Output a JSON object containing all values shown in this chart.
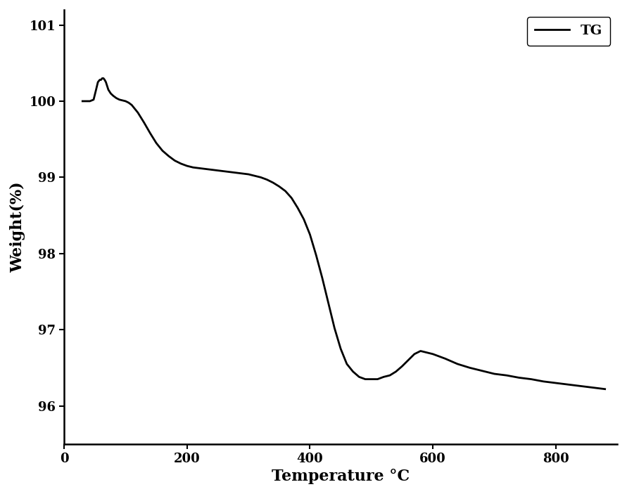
{
  "title": "",
  "xlabel": "Temperature °C",
  "ylabel": "Weight(%)",
  "xlim": [
    0,
    900
  ],
  "ylim": [
    95.5,
    101.2
  ],
  "yticks": [
    96,
    97,
    98,
    99,
    100,
    101
  ],
  "xticks": [
    0,
    200,
    400,
    600,
    800
  ],
  "line_color": "#000000",
  "line_width": 2.0,
  "legend_label": "TG",
  "background_color": "#ffffff",
  "x_data": [
    30,
    42,
    48,
    52,
    55,
    58,
    60,
    62,
    64,
    66,
    68,
    70,
    72,
    76,
    80,
    85,
    90,
    95,
    100,
    105,
    110,
    120,
    130,
    140,
    150,
    160,
    170,
    180,
    190,
    200,
    210,
    220,
    230,
    240,
    250,
    260,
    270,
    280,
    290,
    300,
    310,
    320,
    330,
    340,
    350,
    360,
    370,
    380,
    390,
    400,
    410,
    420,
    430,
    440,
    450,
    460,
    470,
    480,
    490,
    500,
    510,
    520,
    530,
    540,
    550,
    560,
    570,
    580,
    590,
    600,
    620,
    640,
    660,
    680,
    700,
    720,
    740,
    760,
    780,
    800,
    820,
    840,
    860,
    880
  ],
  "y_data": [
    100.0,
    100.0,
    100.02,
    100.15,
    100.25,
    100.28,
    100.28,
    100.3,
    100.3,
    100.28,
    100.25,
    100.2,
    100.15,
    100.1,
    100.07,
    100.04,
    100.02,
    100.01,
    100.0,
    99.98,
    99.95,
    99.85,
    99.72,
    99.58,
    99.45,
    99.35,
    99.28,
    99.22,
    99.18,
    99.15,
    99.13,
    99.12,
    99.11,
    99.1,
    99.09,
    99.08,
    99.07,
    99.06,
    99.05,
    99.04,
    99.02,
    99.0,
    98.97,
    98.93,
    98.88,
    98.82,
    98.73,
    98.6,
    98.45,
    98.25,
    97.98,
    97.68,
    97.35,
    97.02,
    96.75,
    96.55,
    96.45,
    96.38,
    96.35,
    96.35,
    96.35,
    96.38,
    96.4,
    96.45,
    96.52,
    96.6,
    96.68,
    96.72,
    96.7,
    96.68,
    96.62,
    96.55,
    96.5,
    96.46,
    96.42,
    96.4,
    96.37,
    96.35,
    96.32,
    96.3,
    96.28,
    96.26,
    96.24,
    96.22
  ]
}
